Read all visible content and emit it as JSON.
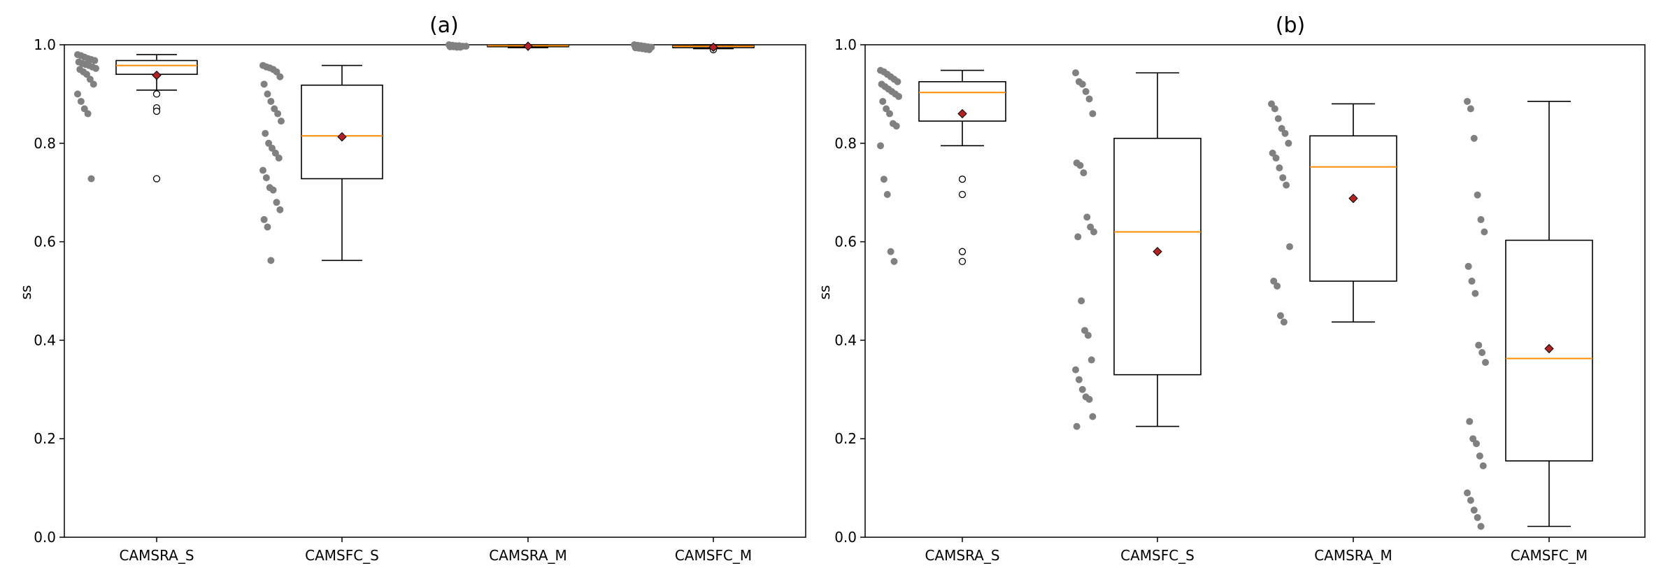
{
  "chart_data": [
    {
      "type": "box",
      "title": "(a)",
      "ylabel": "ss",
      "xlabel": "",
      "ylim": [
        0,
        1.0
      ],
      "yticks": [
        0.0,
        0.2,
        0.4,
        0.6,
        0.8,
        1.0
      ],
      "ytick_labels": [
        "0.0",
        "0.2",
        "0.4",
        "0.6",
        "0.8",
        "1.0"
      ],
      "grid": false,
      "categories": [
        "CAMSRA_S",
        "CAMSFC_S",
        "CAMSRA_M",
        "CAMSFC_M"
      ],
      "colors": {
        "box": "#000000",
        "median": "#ff8c00",
        "mean": "#b22222",
        "points": "#808080"
      },
      "boxes": [
        {
          "label": "CAMSRA_S",
          "whisker_low": 0.908,
          "q1": 0.94,
          "median": 0.958,
          "q3": 0.968,
          "whisker_high": 0.98,
          "mean": 0.938,
          "outliers": [
            0.9,
            0.872,
            0.865,
            0.728
          ],
          "points": [
            0.98,
            0.978,
            0.975,
            0.972,
            0.97,
            0.968,
            0.965,
            0.962,
            0.96,
            0.958,
            0.955,
            0.952,
            0.95,
            0.945,
            0.94,
            0.93,
            0.92,
            0.9,
            0.885,
            0.87,
            0.86,
            0.728
          ]
        },
        {
          "label": "CAMSFC_S",
          "whisker_low": 0.562,
          "q1": 0.728,
          "median": 0.815,
          "q3": 0.918,
          "whisker_high": 0.958,
          "mean": 0.813,
          "outliers": [],
          "points": [
            0.958,
            0.955,
            0.953,
            0.95,
            0.945,
            0.935,
            0.92,
            0.9,
            0.885,
            0.87,
            0.86,
            0.845,
            0.82,
            0.8,
            0.79,
            0.78,
            0.77,
            0.745,
            0.73,
            0.71,
            0.705,
            0.68,
            0.665,
            0.645,
            0.63,
            0.562
          ]
        },
        {
          "label": "CAMSRA_M",
          "whisker_low": 0.994,
          "q1": 0.996,
          "median": 0.998,
          "q3": 0.999,
          "whisker_high": 1.0,
          "mean": 0.997,
          "outliers": [],
          "points": [
            1.0,
            0.999,
            0.998,
            0.998,
            0.997,
            0.997,
            0.996,
            0.996,
            0.995,
            0.995
          ]
        },
        {
          "label": "CAMSFC_M",
          "whisker_low": 0.992,
          "q1": 0.994,
          "median": 0.997,
          "q3": 0.999,
          "whisker_high": 1.0,
          "mean": 0.995,
          "outliers": [
            0.99
          ],
          "points": [
            1.0,
            0.999,
            0.998,
            0.997,
            0.996,
            0.995,
            0.994,
            0.993,
            0.992,
            0.991,
            0.99
          ]
        }
      ]
    },
    {
      "type": "box",
      "title": "(b)",
      "ylabel": "ss",
      "xlabel": "",
      "ylim": [
        0,
        1.0
      ],
      "yticks": [
        0.0,
        0.2,
        0.4,
        0.6,
        0.8,
        1.0
      ],
      "ytick_labels": [
        "0.0",
        "0.2",
        "0.4",
        "0.6",
        "0.8",
        "1.0"
      ],
      "grid": false,
      "categories": [
        "CAMSRA_S",
        "CAMSFC_S",
        "CAMSRA_M",
        "CAMSFC_M"
      ],
      "colors": {
        "box": "#000000",
        "median": "#ff8c00",
        "mean": "#b22222",
        "points": "#808080"
      },
      "boxes": [
        {
          "label": "CAMSRA_S",
          "whisker_low": 0.795,
          "q1": 0.845,
          "median": 0.903,
          "q3": 0.925,
          "whisker_high": 0.948,
          "mean": 0.86,
          "outliers": [
            0.727,
            0.696,
            0.58,
            0.56
          ],
          "points": [
            0.948,
            0.945,
            0.94,
            0.935,
            0.93,
            0.925,
            0.92,
            0.915,
            0.91,
            0.905,
            0.9,
            0.895,
            0.885,
            0.87,
            0.86,
            0.84,
            0.835,
            0.795,
            0.727,
            0.696,
            0.58,
            0.56
          ]
        },
        {
          "label": "CAMSFC_S",
          "whisker_low": 0.225,
          "q1": 0.33,
          "median": 0.62,
          "q3": 0.81,
          "whisker_high": 0.943,
          "mean": 0.58,
          "outliers": [],
          "points": [
            0.943,
            0.925,
            0.92,
            0.905,
            0.89,
            0.86,
            0.76,
            0.755,
            0.74,
            0.65,
            0.63,
            0.62,
            0.61,
            0.48,
            0.42,
            0.41,
            0.36,
            0.34,
            0.32,
            0.3,
            0.285,
            0.28,
            0.245,
            0.225
          ]
        },
        {
          "label": "CAMSRA_M",
          "whisker_low": 0.437,
          "q1": 0.52,
          "median": 0.752,
          "q3": 0.815,
          "whisker_high": 0.88,
          "mean": 0.688,
          "outliers": [],
          "points": [
            0.88,
            0.87,
            0.85,
            0.83,
            0.82,
            0.8,
            0.78,
            0.77,
            0.75,
            0.73,
            0.715,
            0.59,
            0.52,
            0.51,
            0.45,
            0.437
          ]
        },
        {
          "label": "CAMSFC_M",
          "whisker_low": 0.022,
          "q1": 0.155,
          "median": 0.363,
          "q3": 0.603,
          "whisker_high": 0.885,
          "mean": 0.383,
          "outliers": [],
          "points": [
            0.885,
            0.87,
            0.81,
            0.695,
            0.645,
            0.62,
            0.55,
            0.52,
            0.495,
            0.39,
            0.375,
            0.355,
            0.235,
            0.2,
            0.19,
            0.165,
            0.145,
            0.09,
            0.075,
            0.055,
            0.04,
            0.022
          ]
        }
      ]
    }
  ]
}
